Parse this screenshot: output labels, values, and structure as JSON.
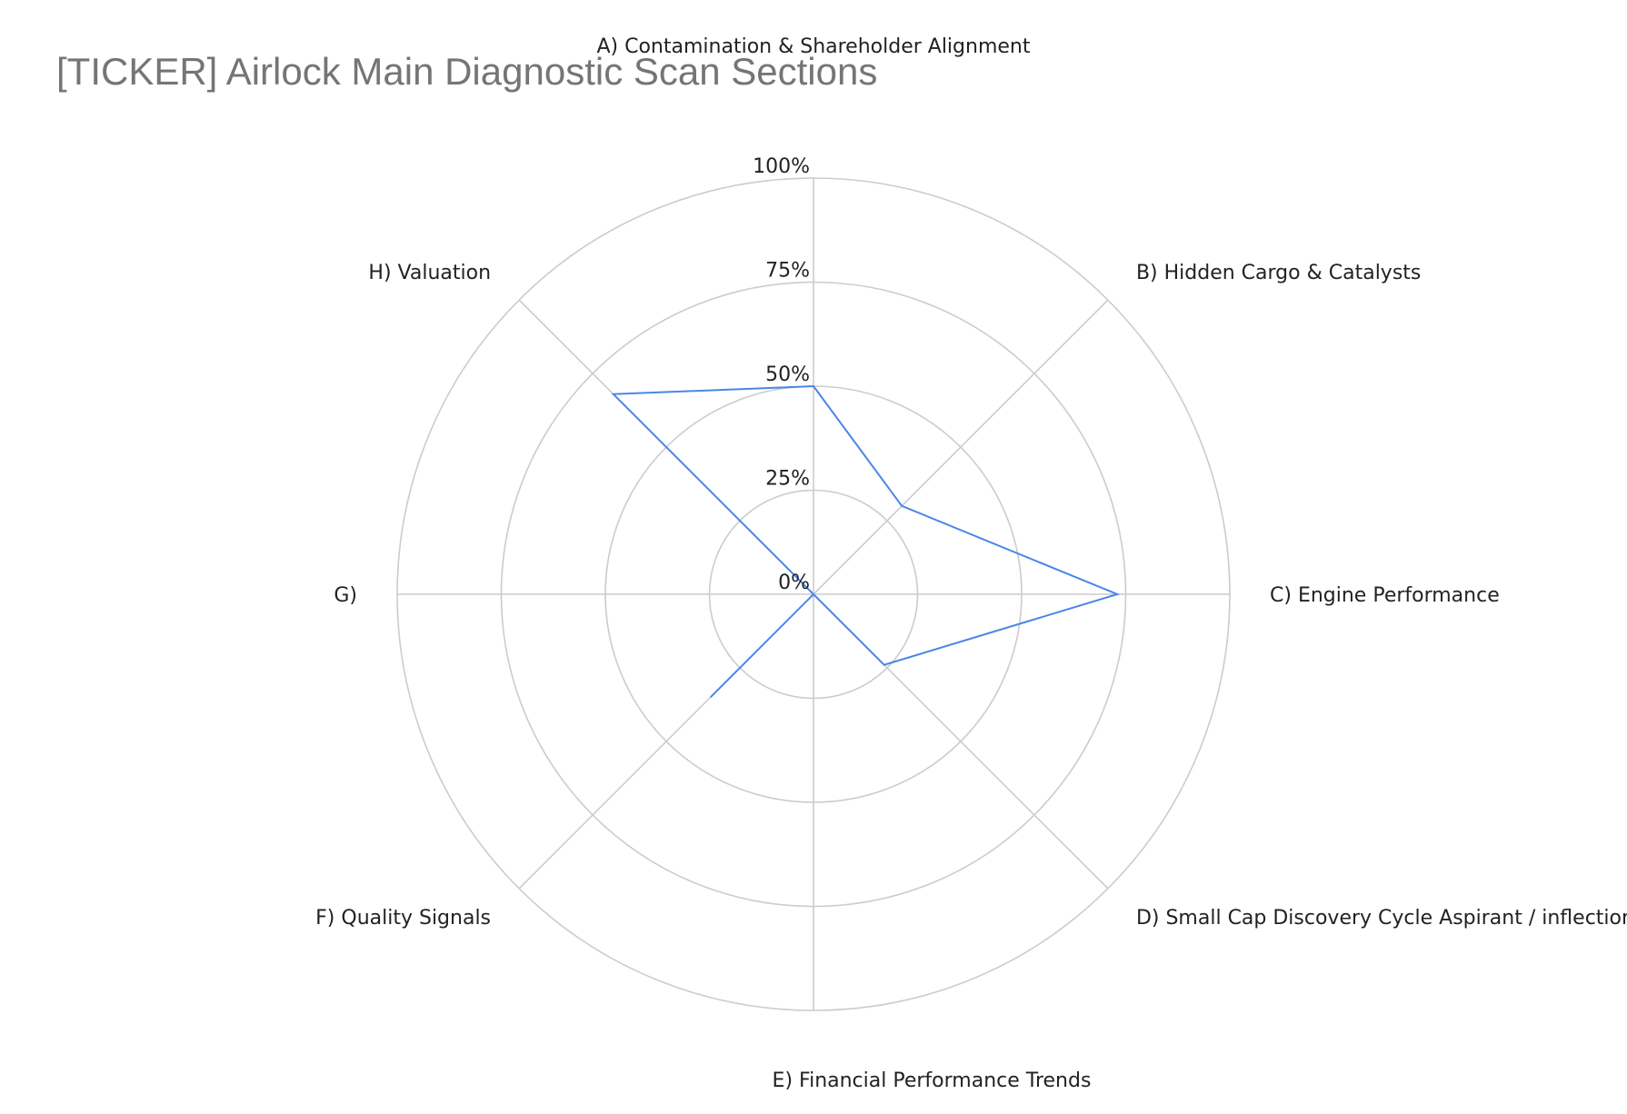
{
  "chart_data": {
    "type": "radar",
    "title": "[TICKER] Airlock Main Diagnostic Scan Sections",
    "categories": [
      "A) Contamination & Shareholder Alignment",
      "B) Hidden Cargo & Catalysts",
      "C) Engine Performance",
      "D) Small Cap Discovery Cycle Aspirant / inflection candidate ?",
      "E) Financial Performance Trends",
      "F) Quality Signals",
      "G)",
      "H) Valuation"
    ],
    "series": [
      {
        "values": [
          50,
          30,
          73,
          24,
          0,
          35,
          0,
          68
        ],
        "color": "#4a86e8"
      }
    ],
    "ticks": [
      "0%",
      "25%",
      "50%",
      "75%",
      "100%"
    ],
    "range": [
      0,
      100
    ],
    "grid": true,
    "legend": "none",
    "grid_color": "#cccccc",
    "title_color": "#757575"
  }
}
